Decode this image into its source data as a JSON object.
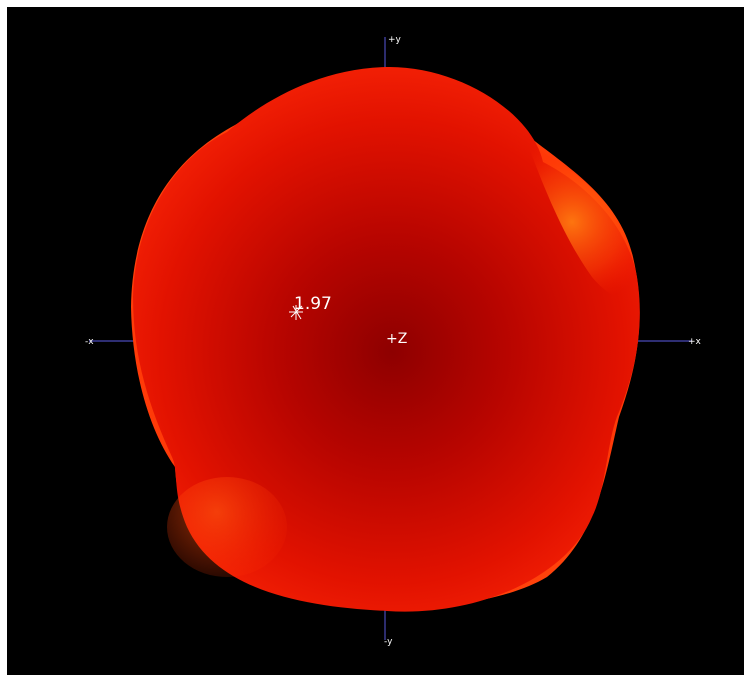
{
  "axes": {
    "pos_y": "+y",
    "neg_y": "-y",
    "pos_x": "+x",
    "neg_x": "-x",
    "pos_z": "+Z"
  },
  "marker": {
    "value": "1.97"
  },
  "colors": {
    "background": "#000000",
    "surface": "#e01000",
    "axis": "#4a4ab8"
  }
}
